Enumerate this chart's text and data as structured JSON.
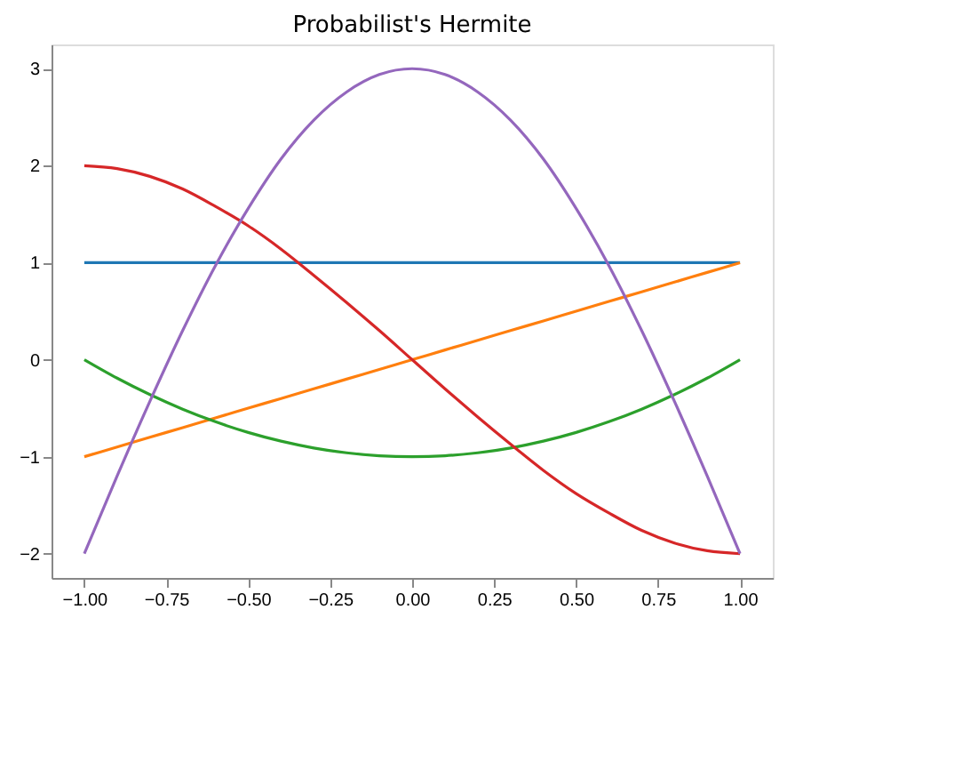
{
  "chart_data": {
    "type": "line",
    "title": "Probabilist's Hermite",
    "x": [
      -1,
      -0.9,
      -0.8,
      -0.7,
      -0.6,
      -0.5,
      -0.4,
      -0.3,
      -0.2,
      -0.1,
      0,
      0.1,
      0.2,
      0.3,
      0.4,
      0.5,
      0.6,
      0.7,
      0.8,
      0.9,
      1
    ],
    "series": [
      {
        "color": "#1f77b4",
        "values": [
          1,
          1,
          1,
          1,
          1,
          1,
          1,
          1,
          1,
          1,
          1,
          1,
          1,
          1,
          1,
          1,
          1,
          1,
          1,
          1,
          1
        ]
      },
      {
        "color": "#ff7f0e",
        "values": [
          -1,
          -0.9,
          -0.8,
          -0.7,
          -0.6,
          -0.5,
          -0.4,
          -0.3,
          -0.2,
          -0.1,
          0,
          0.1,
          0.2,
          0.3,
          0.4,
          0.5,
          0.6,
          0.7,
          0.8,
          0.9,
          1
        ]
      },
      {
        "color": "#2ca02c",
        "values": [
          0,
          -0.19,
          -0.36,
          -0.51,
          -0.64,
          -0.75,
          -0.84,
          -0.91,
          -0.96,
          -0.99,
          -1,
          -0.99,
          -0.96,
          -0.91,
          -0.84,
          -0.75,
          -0.64,
          -0.51,
          -0.36,
          -0.19,
          0
        ]
      },
      {
        "color": "#d62728",
        "values": [
          2,
          1.97,
          1.89,
          1.76,
          1.58,
          1.38,
          1.14,
          0.87,
          0.59,
          0.3,
          0,
          -0.3,
          -0.59,
          -0.87,
          -1.14,
          -1.38,
          -1.58,
          -1.76,
          -1.89,
          -1.97,
          -2
        ]
      },
      {
        "color": "#9467bd",
        "values": [
          -2,
          -1.2,
          -0.43,
          0.3,
          0.97,
          1.56,
          2.07,
          2.47,
          2.76,
          2.94,
          3,
          2.94,
          2.76,
          2.47,
          2.07,
          1.56,
          0.97,
          0.3,
          -0.43,
          -1.2,
          -2
        ]
      }
    ],
    "xlim": [
      -1.1,
      1.1
    ],
    "xticks": [
      {
        "value": -1,
        "label": "−1.00"
      },
      {
        "value": -0.75,
        "label": "−0.75"
      },
      {
        "value": -0.5,
        "label": "−0.50"
      },
      {
        "value": -0.25,
        "label": "−0.25"
      },
      {
        "value": 0,
        "label": "0.00"
      },
      {
        "value": 0.25,
        "label": "0.25"
      },
      {
        "value": 0.5,
        "label": "0.50"
      },
      {
        "value": 0.75,
        "label": "0.75"
      },
      {
        "value": 1,
        "label": "1.00"
      }
    ],
    "ylim": [
      -2.25,
      3.25
    ],
    "yticks": [
      {
        "value": -2,
        "label": "−2"
      },
      {
        "value": -1,
        "label": "−1"
      },
      0,
      1,
      2,
      3
    ],
    "grid": false,
    "legend": false,
    "marker": "none",
    "line_style": "solid"
  }
}
